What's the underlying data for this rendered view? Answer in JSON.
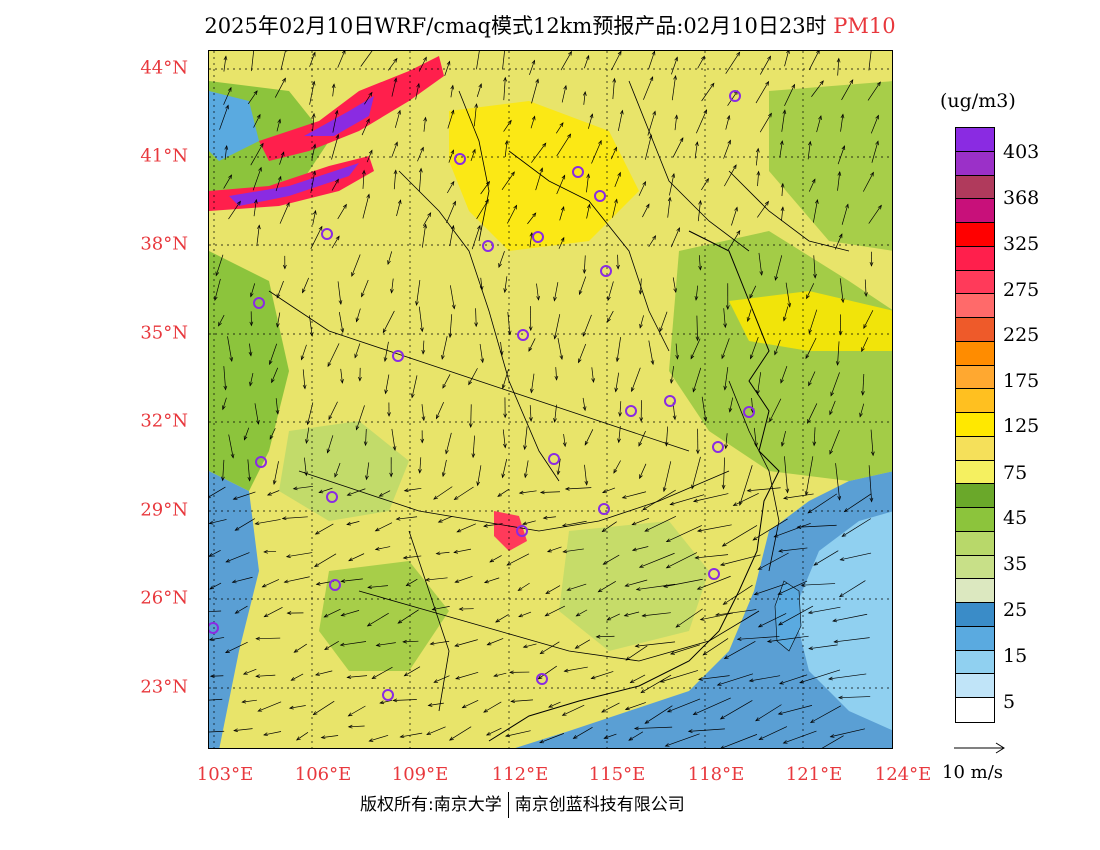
{
  "title": {
    "main": "2025年02月10日WRF/cmaq模式12km预报产品:02月10日23时",
    "pollutant": "PM10"
  },
  "map": {
    "lat_labels": [
      "44°N",
      "41°N",
      "38°N",
      "35°N",
      "32°N",
      "29°N",
      "26°N",
      "23°N"
    ],
    "lon_labels": [
      "103°E",
      "106°E",
      "109°E",
      "112°E",
      "115°E",
      "118°E",
      "121°E",
      "124°E"
    ],
    "colors": {
      "land_base": "#e8e46a",
      "sea": "#5a9fd4",
      "border": "#000000",
      "city_marker": "#8a2be2"
    }
  },
  "legend": {
    "unit": "(ug/m3)",
    "swatches": [
      "#8a2be2",
      "#9b30c8",
      "#b03a5c",
      "#c8107a",
      "#ff0000",
      "#ff1f4c",
      "#ff3a5a",
      "#ff6a6a",
      "#ee5a2a",
      "#ff8c00",
      "#ffa830",
      "#ffc020",
      "#ffe800",
      "#f5e05a",
      "#f5f060",
      "#6aa82a",
      "#8cc43c",
      "#b8d86a",
      "#c8e088",
      "#dce8c0",
      "#3a8cc8",
      "#5aaae0",
      "#90d0f0",
      "#c0e4f8",
      "#ffffff"
    ],
    "labels": [
      "403",
      "368",
      "325",
      "275",
      "225",
      "175",
      "125",
      "75",
      "45",
      "35",
      "25",
      "15",
      "5"
    ]
  },
  "vector_ref": {
    "label": "10 m/s"
  },
  "footer": {
    "left": "版权所有:南京大学",
    "right": "南京创蓝科技有限公司"
  }
}
